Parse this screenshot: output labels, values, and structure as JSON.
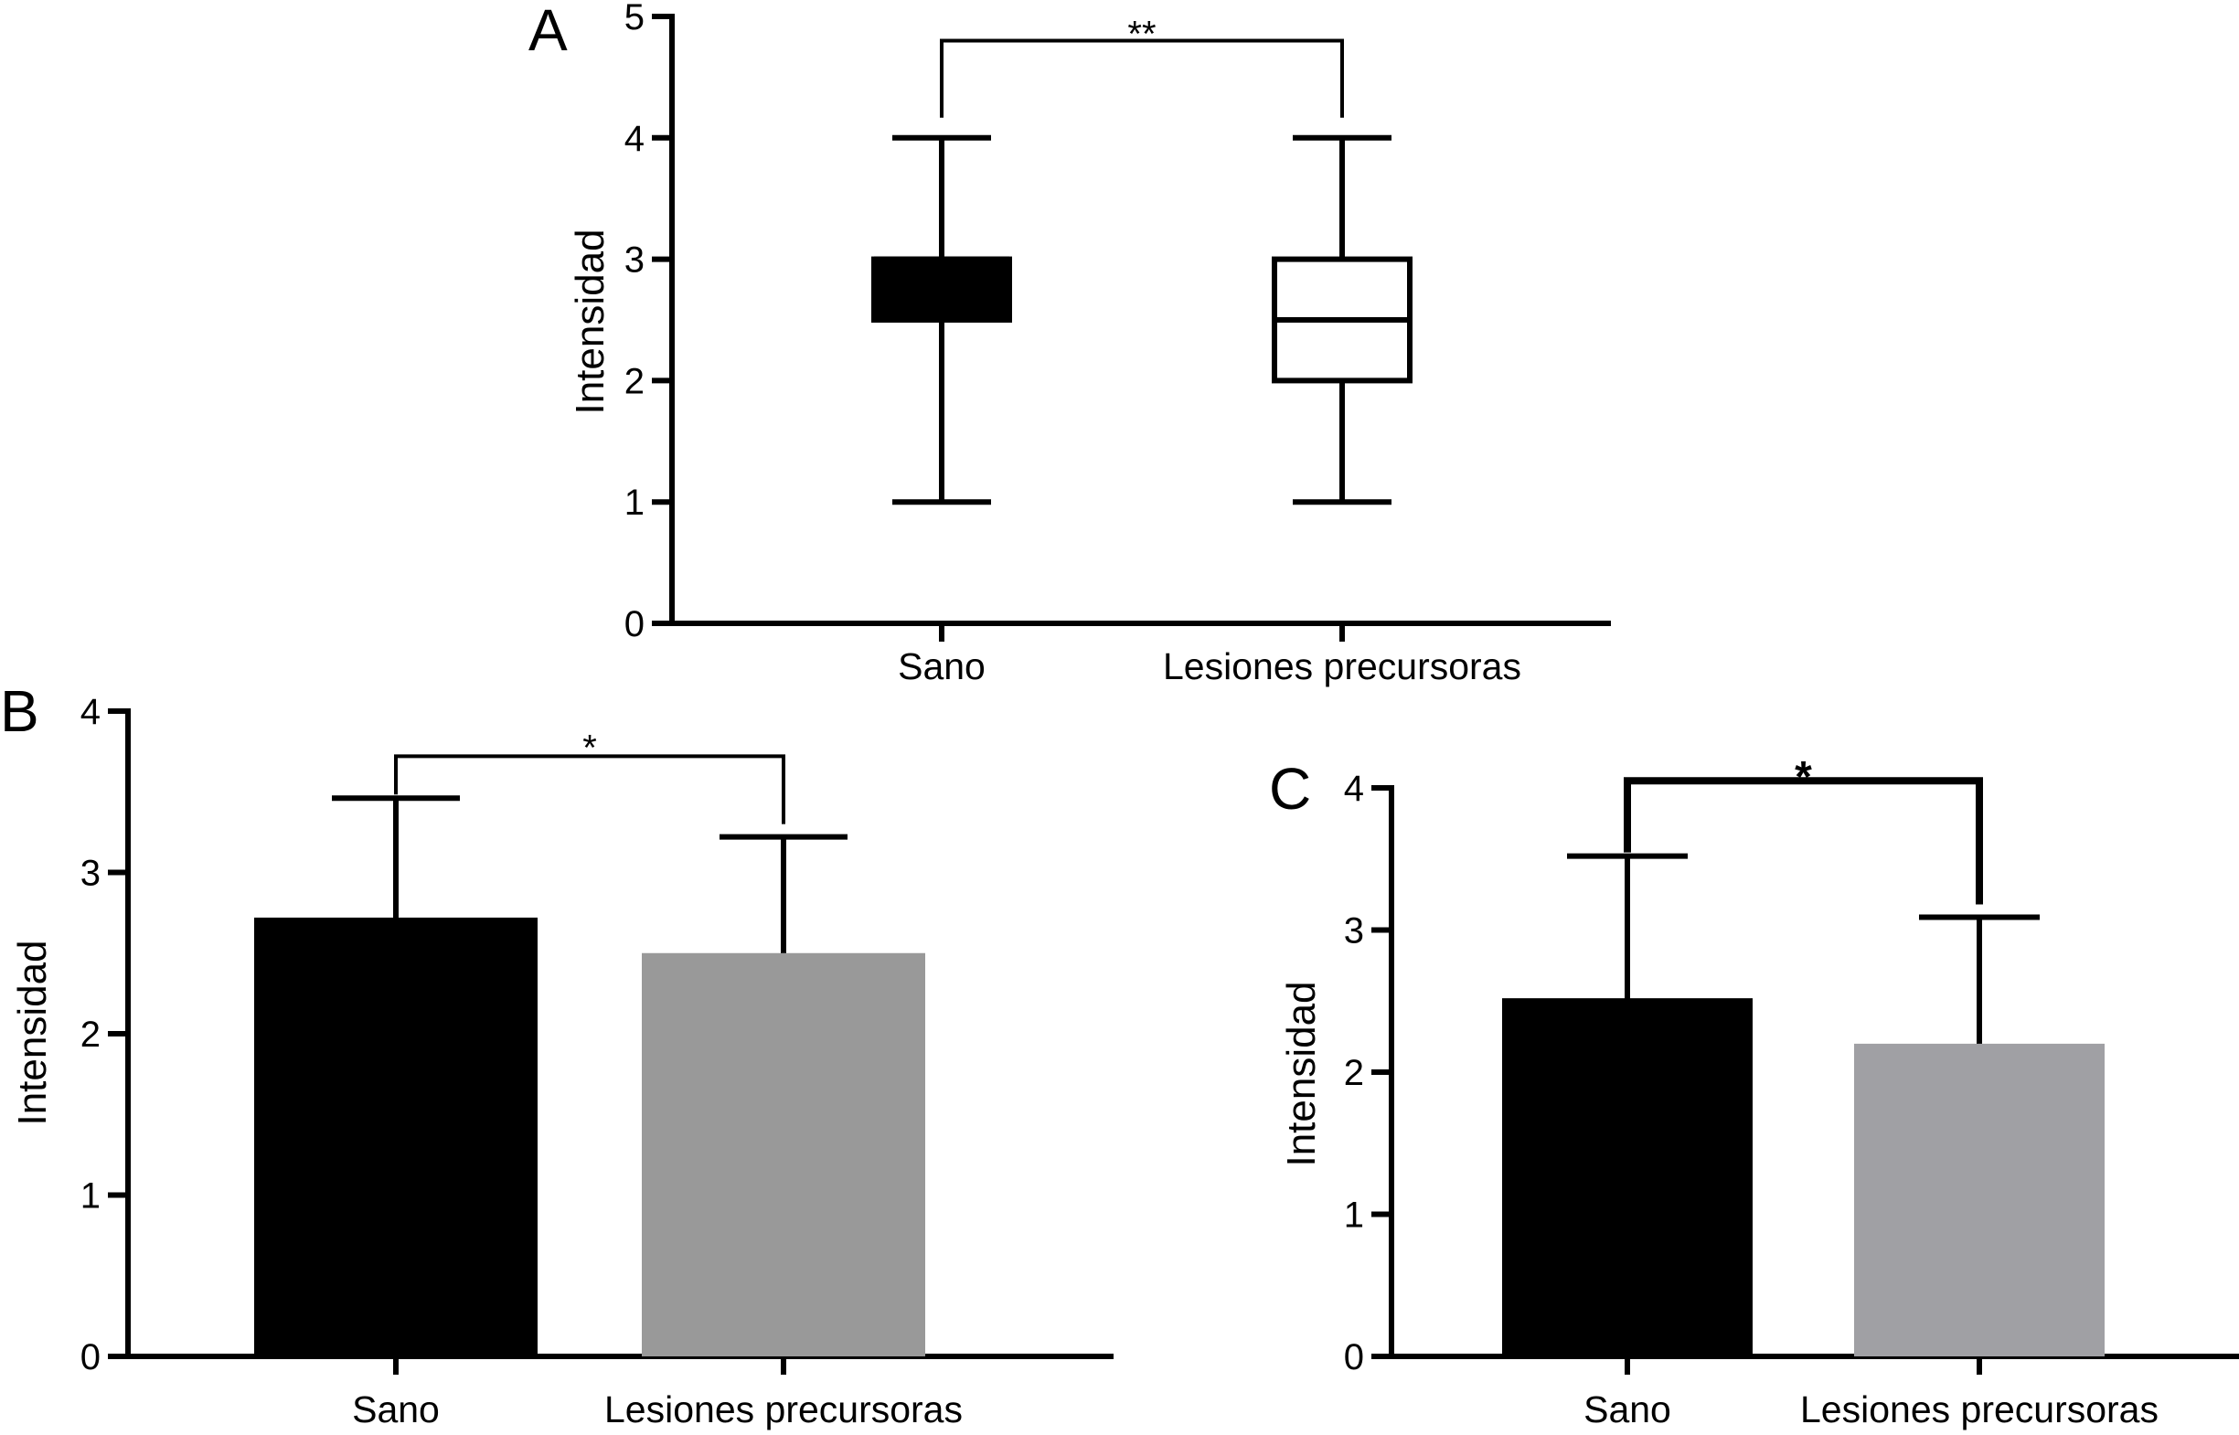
{
  "chart_data": [
    {
      "panel": "A",
      "type": "boxplot",
      "ylabel": "Intensidad",
      "ylim": [
        0,
        5
      ],
      "yticks": [
        0,
        1,
        2,
        3,
        4,
        5
      ],
      "categories": [
        "Sano",
        "Lesiones precursoras"
      ],
      "boxes": [
        {
          "category": "Sano",
          "min": 1,
          "q1": 2.5,
          "median": 3,
          "q3": 3,
          "max": 4,
          "fill": "#000000"
        },
        {
          "category": "Lesiones precursoras",
          "min": 1,
          "q1": 2,
          "median": 2.5,
          "q3": 3,
          "max": 4,
          "fill": "#ffffff"
        }
      ],
      "significance": {
        "label": "**",
        "between": [
          "Sano",
          "Lesiones precursoras"
        ],
        "y": 4.8
      }
    },
    {
      "panel": "B",
      "type": "bar",
      "ylabel": "Intensidad",
      "ylim": [
        0,
        4
      ],
      "yticks": [
        0,
        1,
        2,
        3,
        4
      ],
      "categories": [
        "Sano",
        "Lesiones precursoras"
      ],
      "values": [
        2.72,
        2.5
      ],
      "errors": [
        0.74,
        0.72
      ],
      "colors": [
        "#000000",
        "#999999"
      ],
      "significance": {
        "label": "*",
        "between": [
          "Sano",
          "Lesiones precursoras"
        ],
        "y": 3.72
      }
    },
    {
      "panel": "C",
      "type": "bar",
      "ylabel": "Intensidad",
      "ylim": [
        0,
        4
      ],
      "yticks": [
        0,
        1,
        2,
        3,
        4
      ],
      "categories": [
        "Sano",
        "Lesiones precursoras"
      ],
      "values": [
        2.52,
        2.2
      ],
      "errors": [
        1.0,
        0.89
      ],
      "colors": [
        "#000000",
        "#a0a0a4"
      ],
      "significance": {
        "label": "*",
        "between": [
          "Sano",
          "Lesiones precursoras"
        ],
        "y": 4.05
      }
    }
  ]
}
